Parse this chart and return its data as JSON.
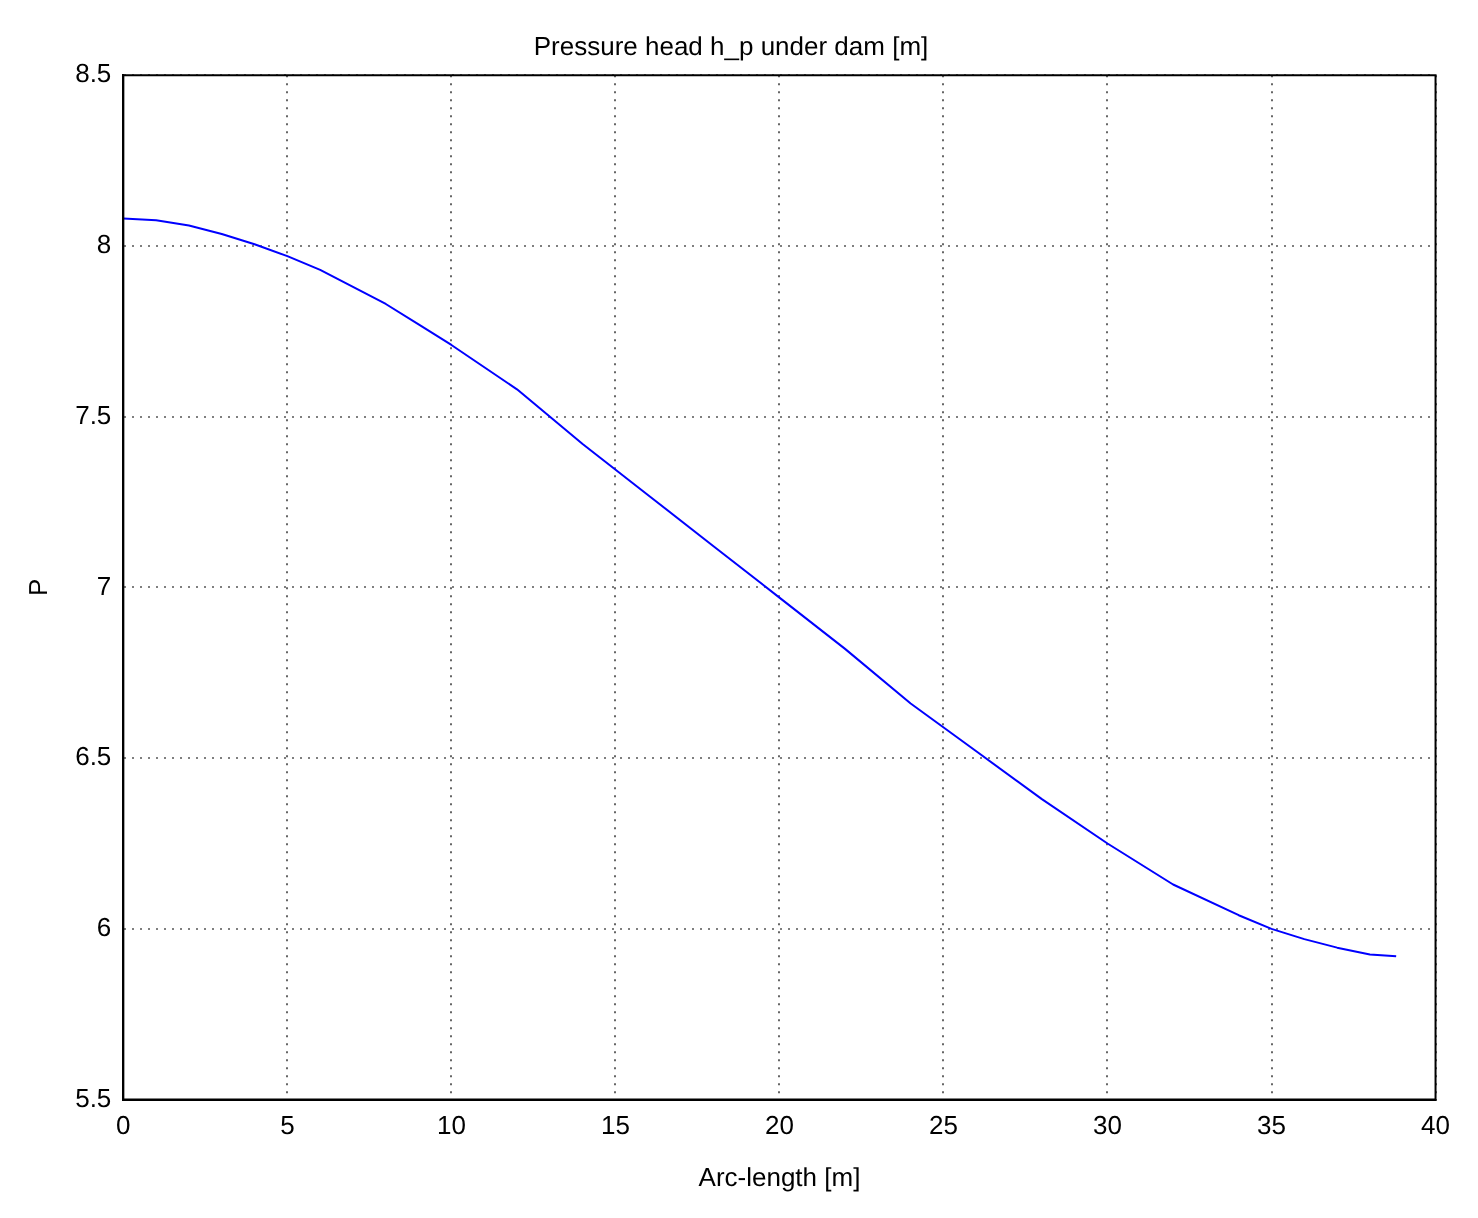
{
  "chart_data": {
    "type": "line",
    "title": "Pressure head h_p under dam [m]",
    "xlabel": "Arc-length [m]",
    "ylabel": "P",
    "x": [
      0,
      1,
      2,
      3,
      4,
      5,
      6,
      7,
      8,
      9,
      10,
      12,
      14,
      16,
      18,
      20,
      22,
      24,
      26,
      28,
      30,
      32,
      34,
      35,
      36,
      37,
      38,
      38.8
    ],
    "series": [
      {
        "color": "#0000ff",
        "values": [
          8.08,
          8.075,
          8.06,
          8.035,
          8.005,
          7.97,
          7.93,
          7.88,
          7.83,
          7.77,
          7.71,
          7.58,
          7.42,
          7.27,
          7.12,
          6.97,
          6.82,
          6.66,
          6.52,
          6.38,
          6.25,
          6.13,
          6.04,
          6.0,
          5.97,
          5.945,
          5.925,
          5.92
        ]
      }
    ],
    "xlim": [
      0,
      40
    ],
    "xticks": [
      0,
      5,
      10,
      15,
      20,
      25,
      30,
      35,
      40
    ],
    "ylim": [
      5.5,
      8.5
    ],
    "yticks": [
      5.5,
      6,
      6.5,
      7,
      7.5,
      8,
      8.5
    ],
    "grid": true,
    "legend": false,
    "marker": "none",
    "line_style": "solid"
  }
}
